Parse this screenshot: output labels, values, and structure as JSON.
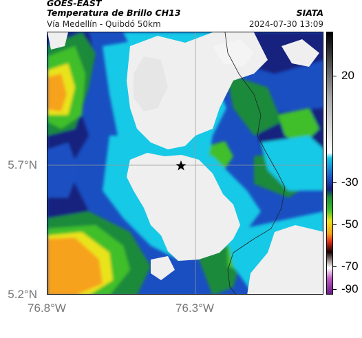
{
  "header": {
    "satellite": "GOES-EAST",
    "product": "Temperatura de Brillo CH13",
    "organization": "SIATA",
    "region": "Vía Medellín - Quibdó 50km",
    "timestamp": "2024-07-30 13:09"
  },
  "map": {
    "lat_ticks": [
      "5.7°N",
      "5.2°N"
    ],
    "lon_ticks": [
      "76.8°W",
      "76.3°W"
    ],
    "marker_icon": "star-icon",
    "colors": {
      "warm": "#f7a21a",
      "yellow": "#e9e31c",
      "green": "#3fbf2a",
      "dark_green": "#1f8a3a",
      "blue": "#1a4fc2",
      "navy": "#13207d",
      "cyan": "#18c9e6",
      "cold": "#efefef"
    }
  },
  "colorbar": {
    "labels": [
      "20",
      "-30",
      "-50",
      "-70",
      "-90"
    ]
  }
}
